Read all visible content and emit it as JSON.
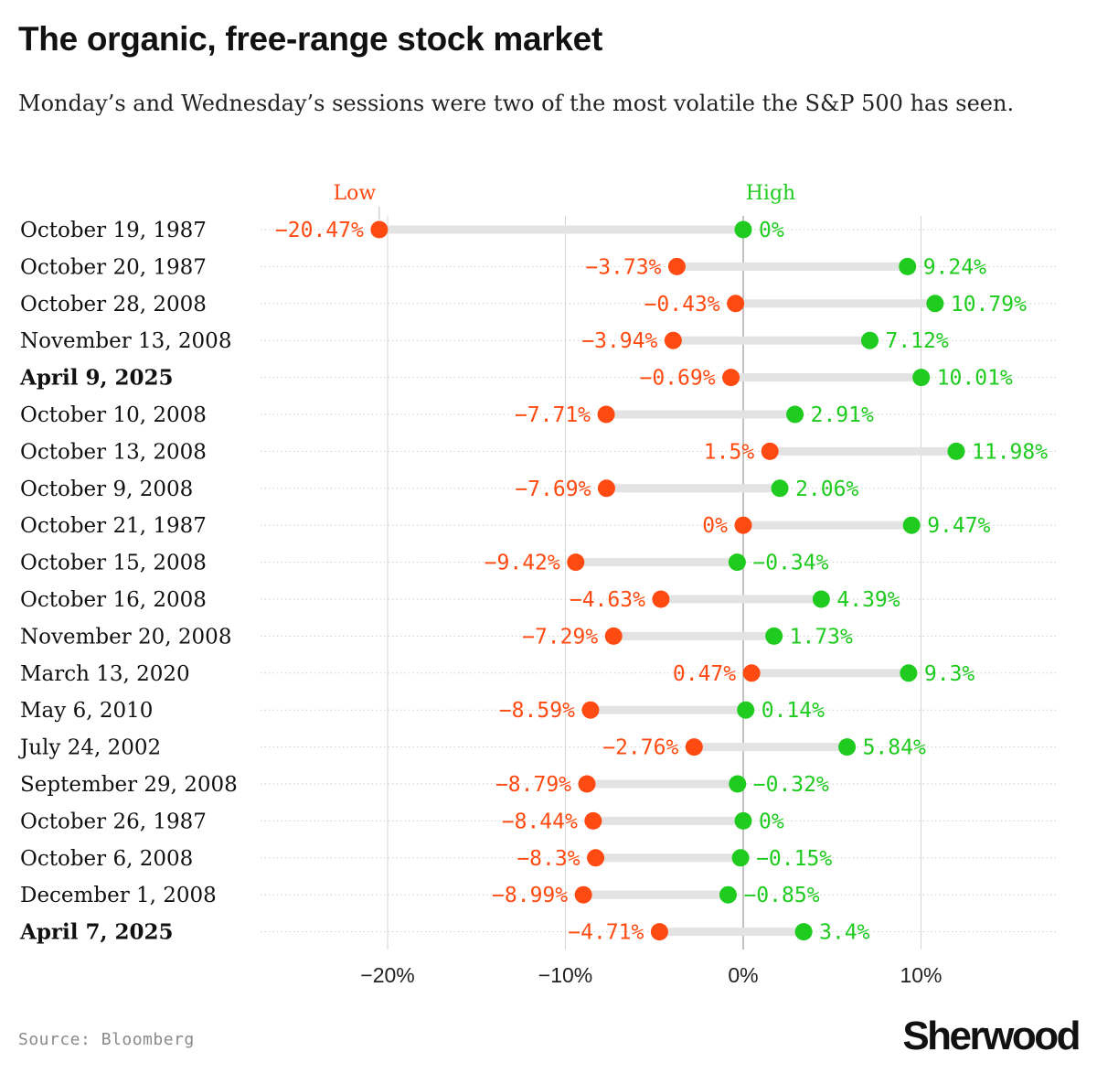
{
  "header": {
    "title": "The organic, free-range stock market",
    "subtitle": "Monday’s and Wednesday’s sessions were two of the most volatile the S&P 500 has seen."
  },
  "footer": {
    "source": "Source: Bloomberg",
    "logo_text": "Sherwood"
  },
  "colors": {
    "low": "#ff4a12",
    "high": "#1ecb1e",
    "bar": "#e3e3e3",
    "grid": "#d6d6d6",
    "zero": "#9a9a9a"
  },
  "chart_data": {
    "type": "dumbbell",
    "title": "The organic, free-range stock market",
    "series": [
      {
        "name": "Low",
        "key": "low"
      },
      {
        "name": "High",
        "key": "high"
      }
    ],
    "x_range": [
      -20.47,
      11.98
    ],
    "x_ticks": [
      {
        "value": -20,
        "label": "−20%"
      },
      {
        "value": -10,
        "label": "−10%"
      },
      {
        "value": 0,
        "label": "0%"
      },
      {
        "value": 10,
        "label": "10%"
      }
    ],
    "rows": [
      {
        "date": "October 19, 1987",
        "bold": false,
        "low": -20.47,
        "low_label": "−20.47%",
        "high": 0,
        "high_label": "0%"
      },
      {
        "date": "October 20, 1987",
        "bold": false,
        "low": -3.73,
        "low_label": "−3.73%",
        "high": 9.24,
        "high_label": "9.24%"
      },
      {
        "date": "October 28, 2008",
        "bold": false,
        "low": -0.43,
        "low_label": "−0.43%",
        "high": 10.79,
        "high_label": "10.79%"
      },
      {
        "date": "November 13, 2008",
        "bold": false,
        "low": -3.94,
        "low_label": "−3.94%",
        "high": 7.12,
        "high_label": "7.12%"
      },
      {
        "date": "April 9, 2025",
        "bold": true,
        "low": -0.69,
        "low_label": "−0.69%",
        "high": 10.01,
        "high_label": "10.01%"
      },
      {
        "date": "October 10, 2008",
        "bold": false,
        "low": -7.71,
        "low_label": "−7.71%",
        "high": 2.91,
        "high_label": "2.91%"
      },
      {
        "date": "October 13, 2008",
        "bold": false,
        "low": 1.5,
        "low_label": "1.5%",
        "high": 11.98,
        "high_label": "11.98%"
      },
      {
        "date": "October 9, 2008",
        "bold": false,
        "low": -7.69,
        "low_label": "−7.69%",
        "high": 2.06,
        "high_label": "2.06%"
      },
      {
        "date": "October 21, 1987",
        "bold": false,
        "low": 0,
        "low_label": "0%",
        "high": 9.47,
        "high_label": "9.47%"
      },
      {
        "date": "October 15, 2008",
        "bold": false,
        "low": -9.42,
        "low_label": "−9.42%",
        "high": -0.34,
        "high_label": "−0.34%"
      },
      {
        "date": "October 16, 2008",
        "bold": false,
        "low": -4.63,
        "low_label": "−4.63%",
        "high": 4.39,
        "high_label": "4.39%"
      },
      {
        "date": "November 20, 2008",
        "bold": false,
        "low": -7.29,
        "low_label": "−7.29%",
        "high": 1.73,
        "high_label": "1.73%"
      },
      {
        "date": "March 13, 2020",
        "bold": false,
        "low": 0.47,
        "low_label": "0.47%",
        "high": 9.3,
        "high_label": "9.3%"
      },
      {
        "date": "May 6, 2010",
        "bold": false,
        "low": -8.59,
        "low_label": "−8.59%",
        "high": 0.14,
        "high_label": "0.14%"
      },
      {
        "date": "July 24, 2002",
        "bold": false,
        "low": -2.76,
        "low_label": "−2.76%",
        "high": 5.84,
        "high_label": "5.84%"
      },
      {
        "date": "September 29, 2008",
        "bold": false,
        "low": -8.79,
        "low_label": "−8.79%",
        "high": -0.32,
        "high_label": "−0.32%"
      },
      {
        "date": "October 26, 1987",
        "bold": false,
        "low": -8.44,
        "low_label": "−8.44%",
        "high": 0,
        "high_label": "0%"
      },
      {
        "date": "October 6, 2008",
        "bold": false,
        "low": -8.3,
        "low_label": "−8.3%",
        "high": -0.15,
        "high_label": "−0.15%"
      },
      {
        "date": "December 1, 2008",
        "bold": false,
        "low": -8.99,
        "low_label": "−8.99%",
        "high": -0.85,
        "high_label": "−0.85%"
      },
      {
        "date": "April 7, 2025",
        "bold": true,
        "low": -4.71,
        "low_label": "−4.71%",
        "high": 3.4,
        "high_label": "3.4%"
      }
    ]
  }
}
